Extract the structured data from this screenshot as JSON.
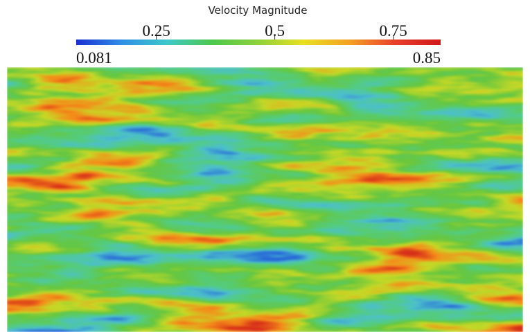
{
  "chart_data": {
    "type": "colorbar",
    "title": "Velocity Magnitude",
    "lim": [
      0.081,
      0.85
    ],
    "ticks": [
      0.25,
      0.5,
      0.75
    ],
    "colormap": [
      "#1a2fd0",
      "#2f8fe6",
      "#3cc8c8",
      "#4cc84a",
      "#8fd03a",
      "#e8e020",
      "#f5a023",
      "#e8402a",
      "#d01818"
    ]
  }
}
